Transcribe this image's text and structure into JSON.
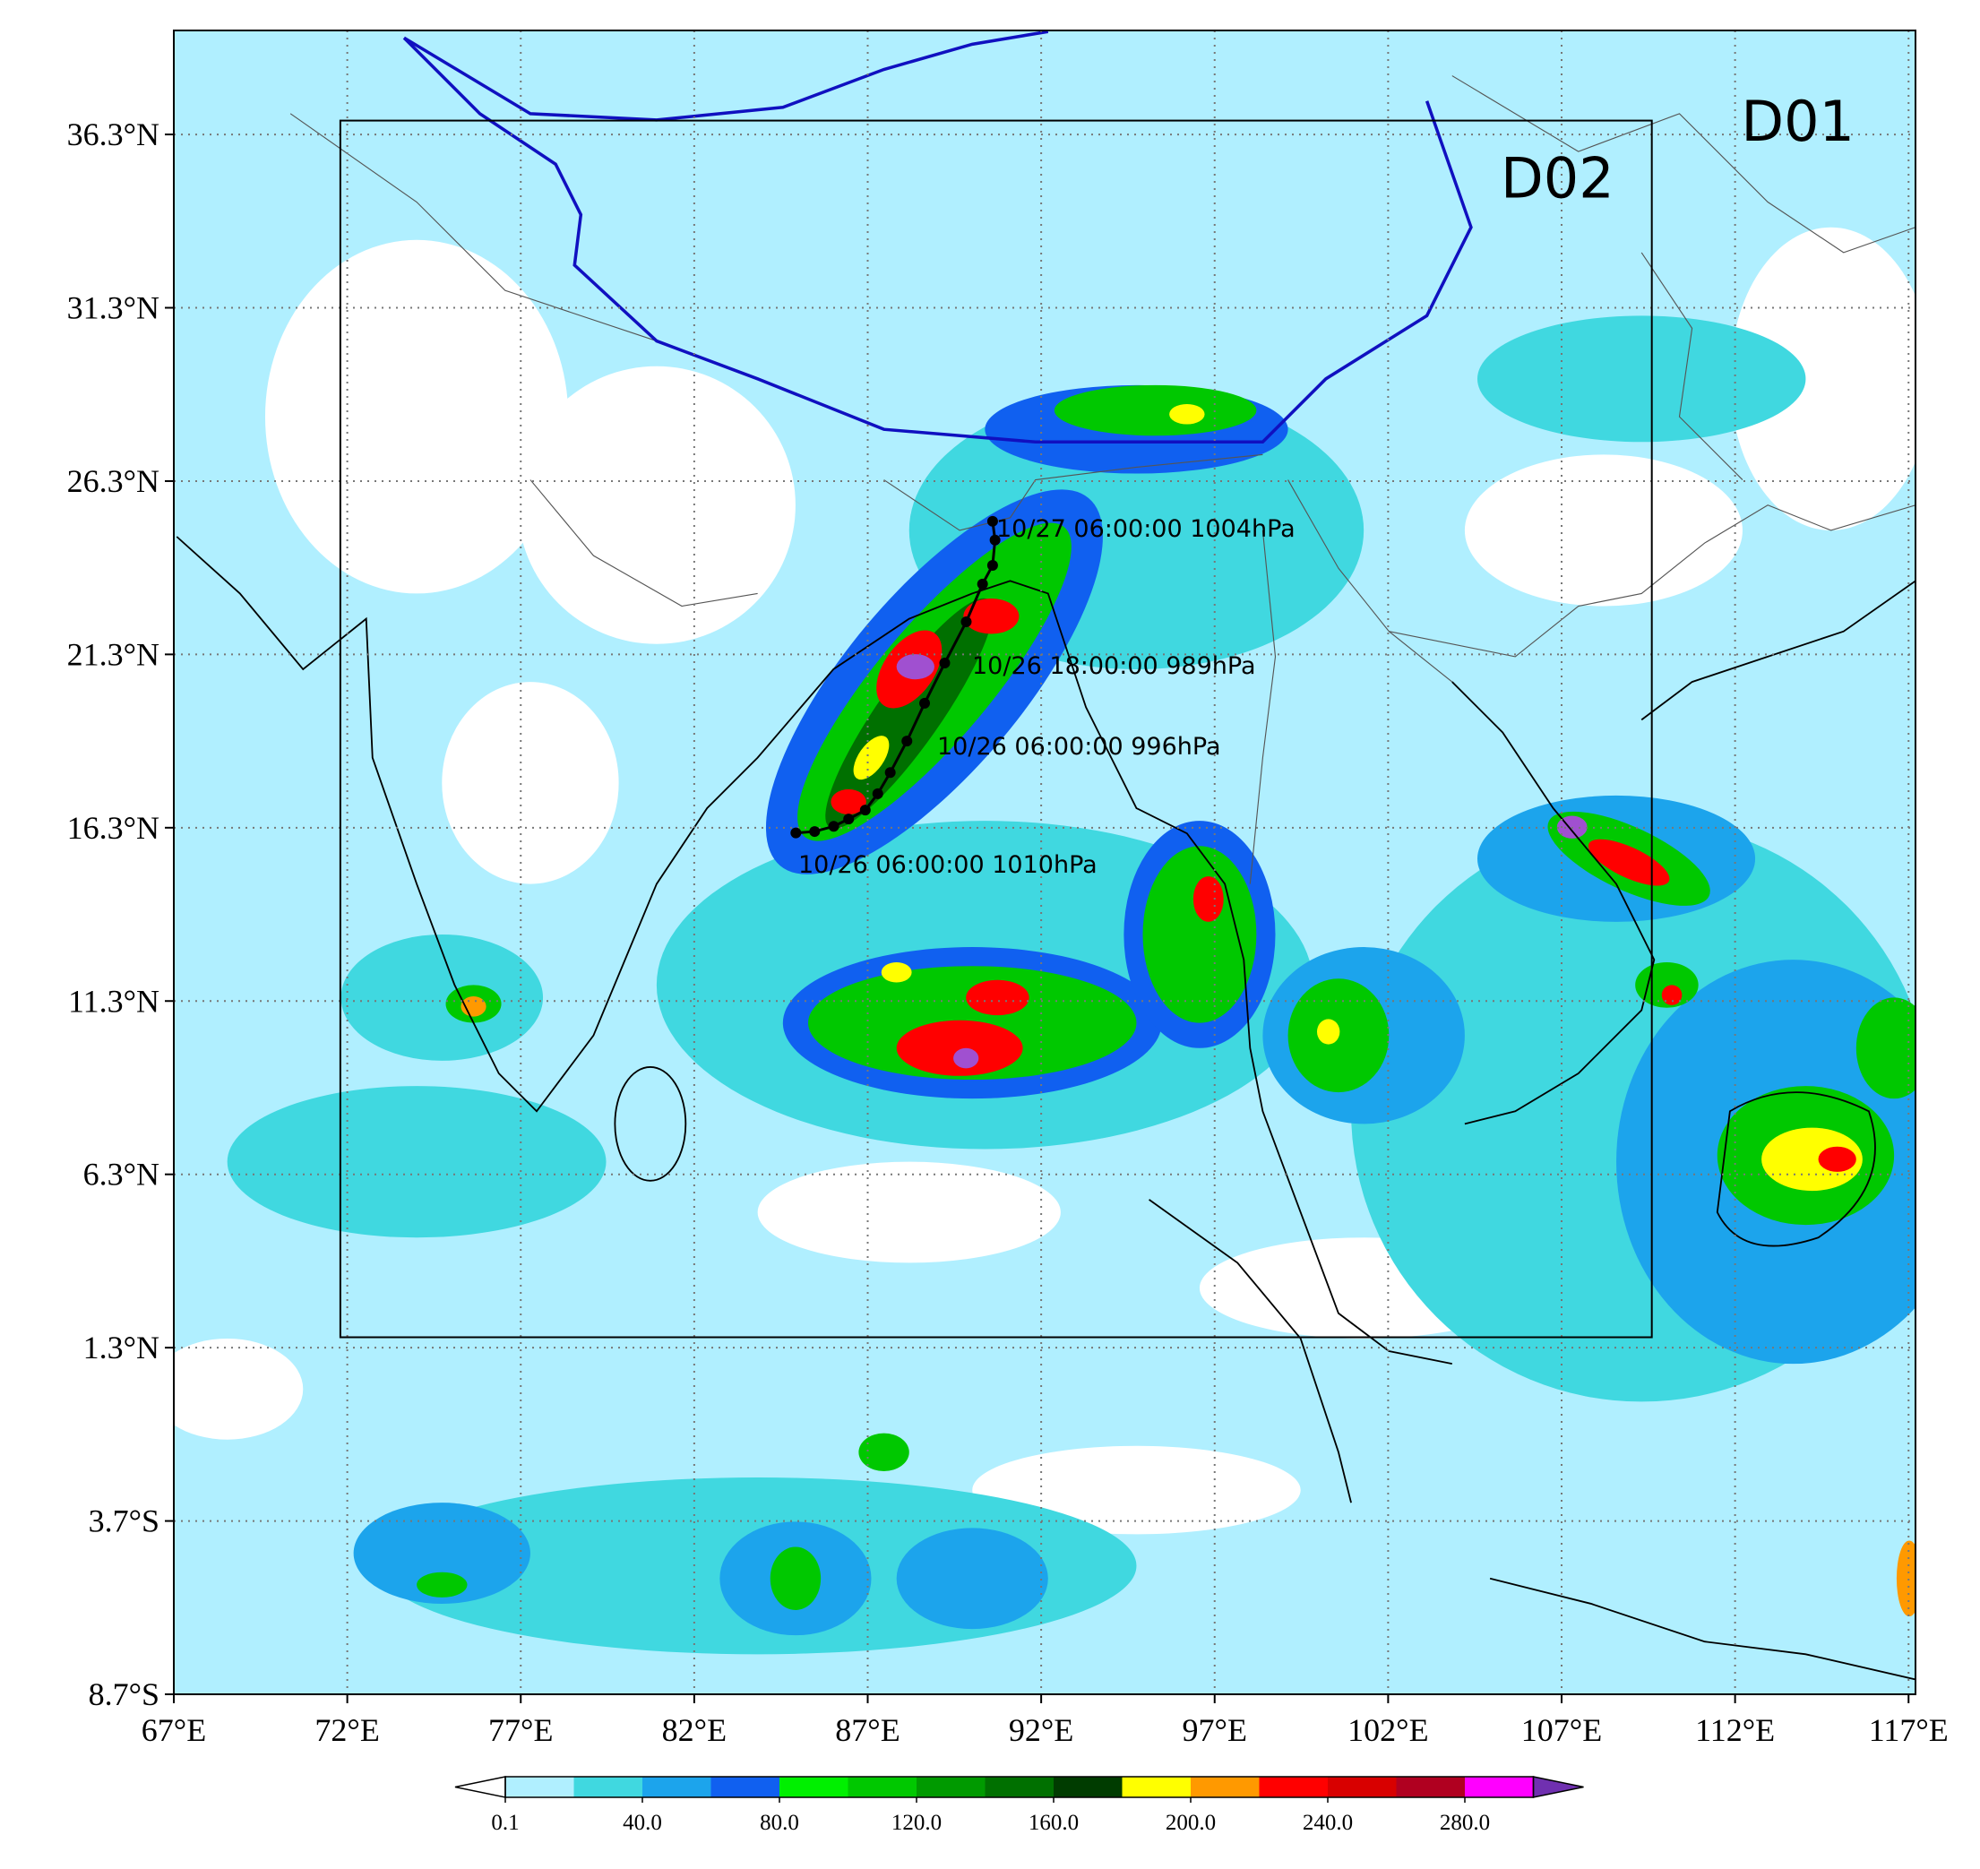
{
  "map": {
    "xlim": [
      67,
      117.2
    ],
    "ylim": [
      -8.7,
      39.3
    ],
    "grid": true,
    "xticks": [
      {
        "value": 67,
        "label": "67°E"
      },
      {
        "value": 72,
        "label": "72°E"
      },
      {
        "value": 77,
        "label": "77°E"
      },
      {
        "value": 82,
        "label": "82°E"
      },
      {
        "value": 87,
        "label": "87°E"
      },
      {
        "value": 92,
        "label": "92°E"
      },
      {
        "value": 97,
        "label": "97°E"
      },
      {
        "value": 102,
        "label": "102°E"
      },
      {
        "value": 107,
        "label": "107°E"
      },
      {
        "value": 112,
        "label": "112°E"
      },
      {
        "value": 117,
        "label": "117°E"
      }
    ],
    "yticks": [
      {
        "value": 36.3,
        "label": "36.3°N"
      },
      {
        "value": 31.3,
        "label": "31.3°N"
      },
      {
        "value": 26.3,
        "label": "26.3°N"
      },
      {
        "value": 21.3,
        "label": "21.3°N"
      },
      {
        "value": 16.3,
        "label": "16.3°N"
      },
      {
        "value": 11.3,
        "label": "11.3°N"
      },
      {
        "value": 6.3,
        "label": "6.3°N"
      },
      {
        "value": 1.3,
        "label": "1.3°N"
      },
      {
        "value": -3.7,
        "label": "3.7°S"
      },
      {
        "value": -8.7,
        "label": "8.7°S"
      }
    ],
    "domains": [
      {
        "label": "D01"
      },
      {
        "label": "D02",
        "lon": [
          71.8,
          109.6
        ],
        "lat": [
          1.6,
          36.7
        ]
      }
    ],
    "track": {
      "color": "#000000",
      "lon": [
        84.93,
        85.47,
        86.02,
        86.45,
        86.93,
        87.29,
        87.65,
        88.13,
        88.64,
        89.22,
        89.84,
        90.31,
        90.6,
        90.67,
        90.6
      ],
      "lat": [
        16.15,
        16.19,
        16.34,
        16.55,
        16.81,
        17.28,
        17.89,
        18.8,
        19.89,
        21.05,
        22.24,
        23.33,
        23.87,
        24.6,
        25.14
      ]
    },
    "annotations": [
      "10/27 06:00:00 1004hPa",
      "10/26 18:00:00 989hPa",
      "10/26 06:00:00 996hPa",
      "10/26 06:00:00 1010hPa"
    ],
    "colorbar": {
      "levels": [
        0.1,
        20,
        40,
        60,
        80,
        100,
        120,
        140,
        160,
        180,
        200,
        220,
        240,
        260,
        280,
        300
      ],
      "ticks": [
        0.1,
        {
          "value": 40,
          "label": "40.0"
        },
        {
          "value": 80,
          "label": "80.0"
        },
        {
          "value": 120,
          "label": "120.0"
        },
        {
          "value": 160,
          "label": "160.0"
        },
        {
          "value": 200,
          "label": "200.0"
        },
        {
          "value": 240,
          "label": "240.0"
        },
        {
          "value": 280,
          "label": "280.0"
        }
      ],
      "colors": [
        "#b0efff",
        "#40d8e0",
        "#1ca4ec",
        "#1060f0",
        "#00f000",
        "#00c800",
        "#009a00",
        "#007000",
        "#003c00",
        "#ffff00",
        "#ff9900",
        "#ff0000",
        "#d80000",
        "#b00020",
        "#ff00ff",
        "#a050d0"
      ],
      "under_color": "#ffffff",
      "over_color": "#7030b0"
    }
  }
}
